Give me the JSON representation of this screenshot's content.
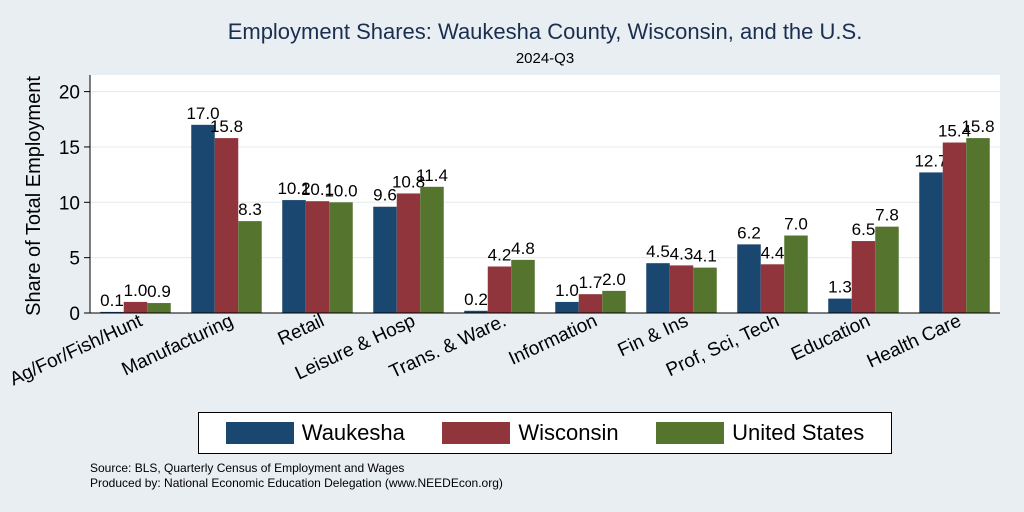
{
  "header": {
    "title": "Employment Shares: Waukesha County, Wisconsin, and the U.S.",
    "subtitle": "2024-Q3"
  },
  "chart_data": {
    "type": "bar",
    "title": "Employment Shares: Waukesha County, Wisconsin, and the U.S.",
    "subtitle": "2024-Q3",
    "xlabel": "",
    "ylabel": "Share of Total Employment",
    "ylim": [
      0,
      21.5
    ],
    "yticks": [
      0,
      5,
      10,
      15,
      20
    ],
    "grid": true,
    "legend_position": "bottom",
    "categories": [
      "Ag/For/Fish/Hunt",
      "Manufacturing",
      "Retail",
      "Leisure & Hosp",
      "Trans. & Ware.",
      "Information",
      "Fin & Ins",
      "Prof, Sci, Tech",
      "Education",
      "Health Care"
    ],
    "series": [
      {
        "name": "Waukesha",
        "color": "#1a476f",
        "values": [
          0.1,
          17.0,
          10.2,
          9.6,
          0.2,
          1.0,
          4.5,
          6.2,
          1.3,
          12.7
        ],
        "labels": [
          "0.1",
          "17.0",
          "10.2",
          "9.6",
          "0.2",
          "1.0",
          "4.5",
          "6.2",
          "1.3",
          "12.7"
        ]
      },
      {
        "name": "Wisconsin",
        "color": "#90353b",
        "values": [
          1.0,
          15.8,
          10.1,
          10.8,
          4.2,
          1.7,
          4.3,
          4.4,
          6.5,
          15.4
        ],
        "labels": [
          "1.0",
          "15.8",
          "10.1",
          "10.8",
          "4.2",
          "1.7",
          "4.3",
          "4.4",
          "6.5",
          "15.4"
        ]
      },
      {
        "name": "United States",
        "color": "#55752f",
        "values": [
          0.9,
          8.3,
          10.0,
          11.4,
          4.8,
          2.0,
          4.1,
          7.0,
          7.8,
          15.8
        ],
        "labels": [
          "0.9",
          "8.3",
          "10.0",
          "11.4",
          "4.8",
          "2.0",
          "4.1",
          "7.0",
          "7.8",
          "15.8"
        ]
      }
    ]
  },
  "footer": {
    "source": "Source: BLS, Quarterly Census of Employment and Wages",
    "produced_by": "Produced by: National Economic Education Delegation (www.NEEDEcon.org)"
  }
}
